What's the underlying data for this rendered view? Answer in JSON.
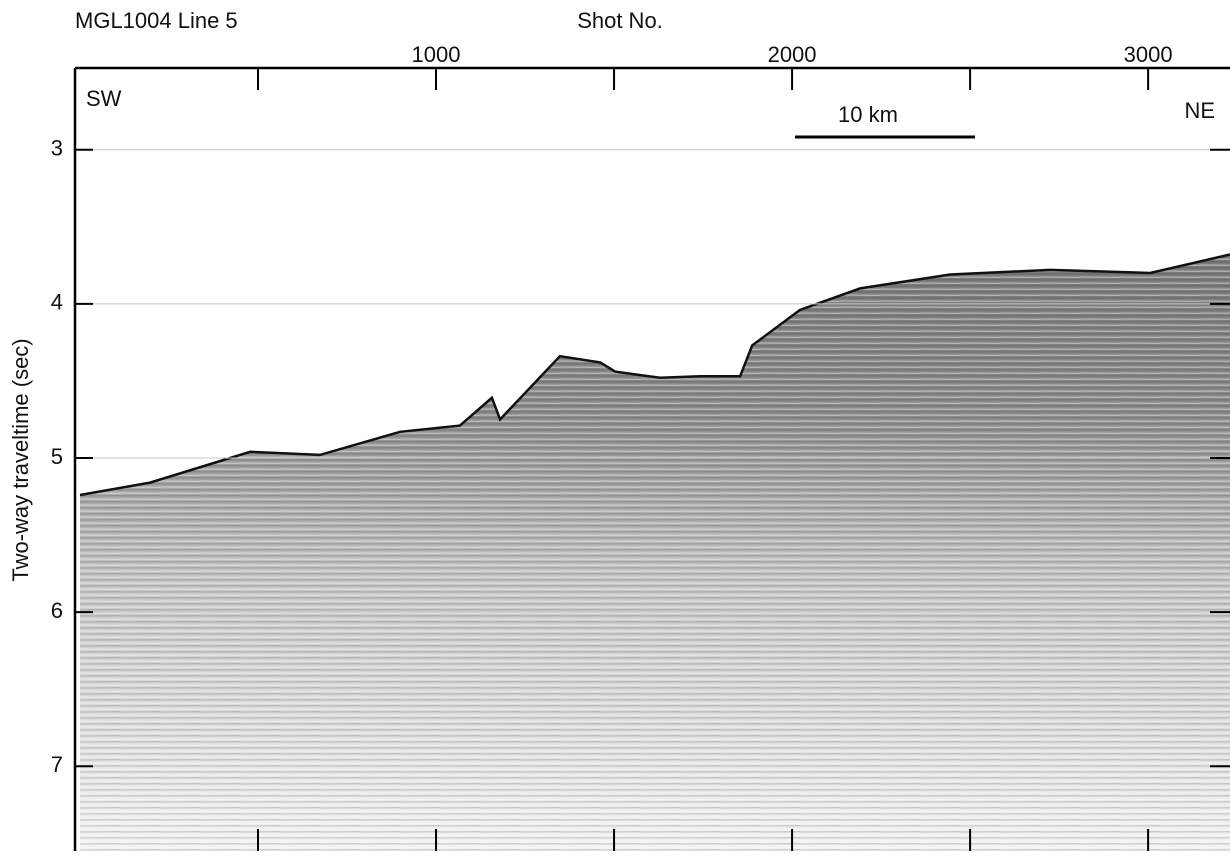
{
  "chart_data": {
    "type": "seismic",
    "title": "MGL1004 Line 5",
    "x_label": "Shot No.",
    "y_label": "Two-way traveltime (sec)",
    "annotations": {
      "left": "SW",
      "right": "NE",
      "scale_bar": "10 km"
    },
    "x": [
      0,
      197,
      478,
      674,
      899,
      1067,
      1157,
      1180,
      1348,
      1461,
      1503,
      1629,
      1742,
      1854,
      1888,
      2022,
      2191,
      2444,
      2725,
      3006,
      3230
    ],
    "values": [
      5.24,
      5.16,
      4.96,
      4.98,
      4.83,
      4.79,
      4.61,
      4.75,
      4.34,
      4.38,
      4.44,
      4.48,
      4.47,
      4.47,
      4.27,
      4.04,
      3.9,
      3.81,
      3.78,
      3.8,
      3.68
    ],
    "color": "#111111",
    "xlim": [
      -14,
      3230
    ],
    "xticks": [
      1000,
      2000,
      3000
    ],
    "xminor_ticks": [
      500,
      1500,
      2500
    ],
    "ylim": [
      2.47,
      7.55
    ],
    "yticks": [
      3,
      4,
      5,
      6,
      7
    ],
    "y_inverted": true,
    "grid": true
  }
}
